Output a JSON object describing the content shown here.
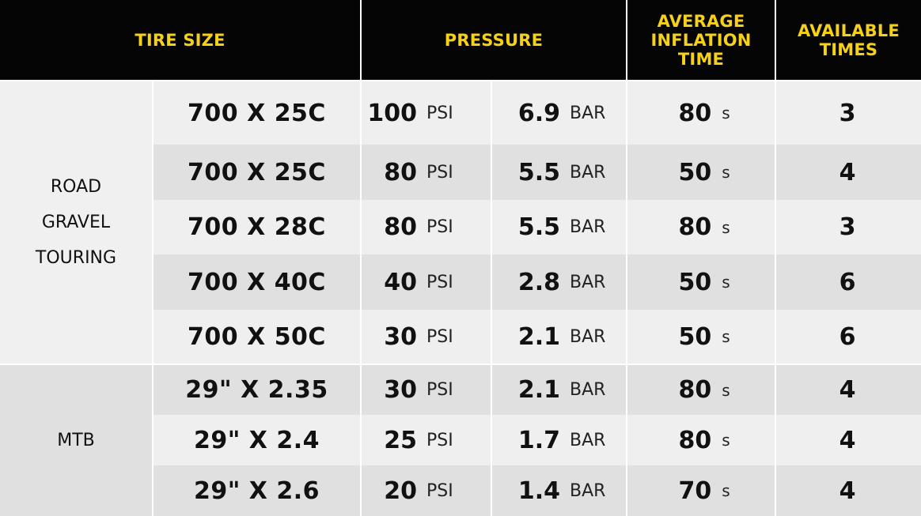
{
  "headers": {
    "tire_size": "TIRE SIZE",
    "pressure": "PRESSURE",
    "inflation": [
      "AVERAGE",
      "INFLATION",
      "TIME"
    ],
    "available": [
      "AVAILABLE",
      "TIMES"
    ]
  },
  "categories": {
    "road": [
      "ROAD",
      "GRAVEL",
      "TOURING"
    ],
    "mtb": "MTB"
  },
  "units": {
    "psi": "PSI",
    "bar": "BAR",
    "sec": "s"
  },
  "rows": [
    {
      "size": "700 X 25C",
      "psi": "100",
      "bar": "6.9",
      "time": "80",
      "times": "3"
    },
    {
      "size": "700 X 25C",
      "psi": "80",
      "bar": "5.5",
      "time": "50",
      "times": "4"
    },
    {
      "size": "700 X 28C",
      "psi": "80",
      "bar": "5.5",
      "time": "80",
      "times": "3"
    },
    {
      "size": "700 X 40C",
      "psi": "40",
      "bar": "2.8",
      "time": "50",
      "times": "6"
    },
    {
      "size": "700 X 50C",
      "psi": "30",
      "bar": "2.1",
      "time": "50",
      "times": "6"
    },
    {
      "size": "29\" X 2.35",
      "psi": "30",
      "bar": "2.1",
      "time": "80",
      "times": "4"
    },
    {
      "size": "29\" X 2.4",
      "psi": "25",
      "bar": "1.7",
      "time": "80",
      "times": "4"
    },
    {
      "size": "29\" X 2.6",
      "psi": "20",
      "bar": "1.4",
      "time": "70",
      "times": "4"
    }
  ],
  "colors": {
    "header_bg": "#050505",
    "header_text": "#f7d117",
    "row_light": "#efefef",
    "row_dark": "#e0e0e0"
  }
}
